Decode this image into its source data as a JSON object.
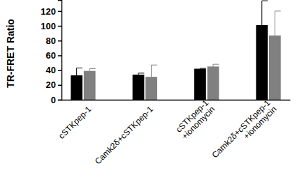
{
  "chart_data": {
    "type": "bar",
    "y_label": "TR-FRET Ratio",
    "categories": [
      "cSTKpep-1",
      "Camk2δ+cSTKpep-1",
      "cSTKpep-1\n+ionomycin",
      "Camk2δ+cSTKpep-1\n+ionomycin"
    ],
    "series": [
      {
        "color": "#000000",
        "values": [
          33,
          34,
          42,
          101
        ],
        "errors": [
          10,
          2,
          0.5,
          33
        ]
      },
      {
        "color": "#808080",
        "values": [
          39,
          31,
          45,
          87
        ],
        "errors": [
          3,
          16,
          3,
          33
        ]
      }
    ],
    "ylim": [
      0,
      135
    ],
    "yticks": [
      0,
      20,
      40,
      60,
      80,
      100,
      120
    ],
    "grid": false
  }
}
